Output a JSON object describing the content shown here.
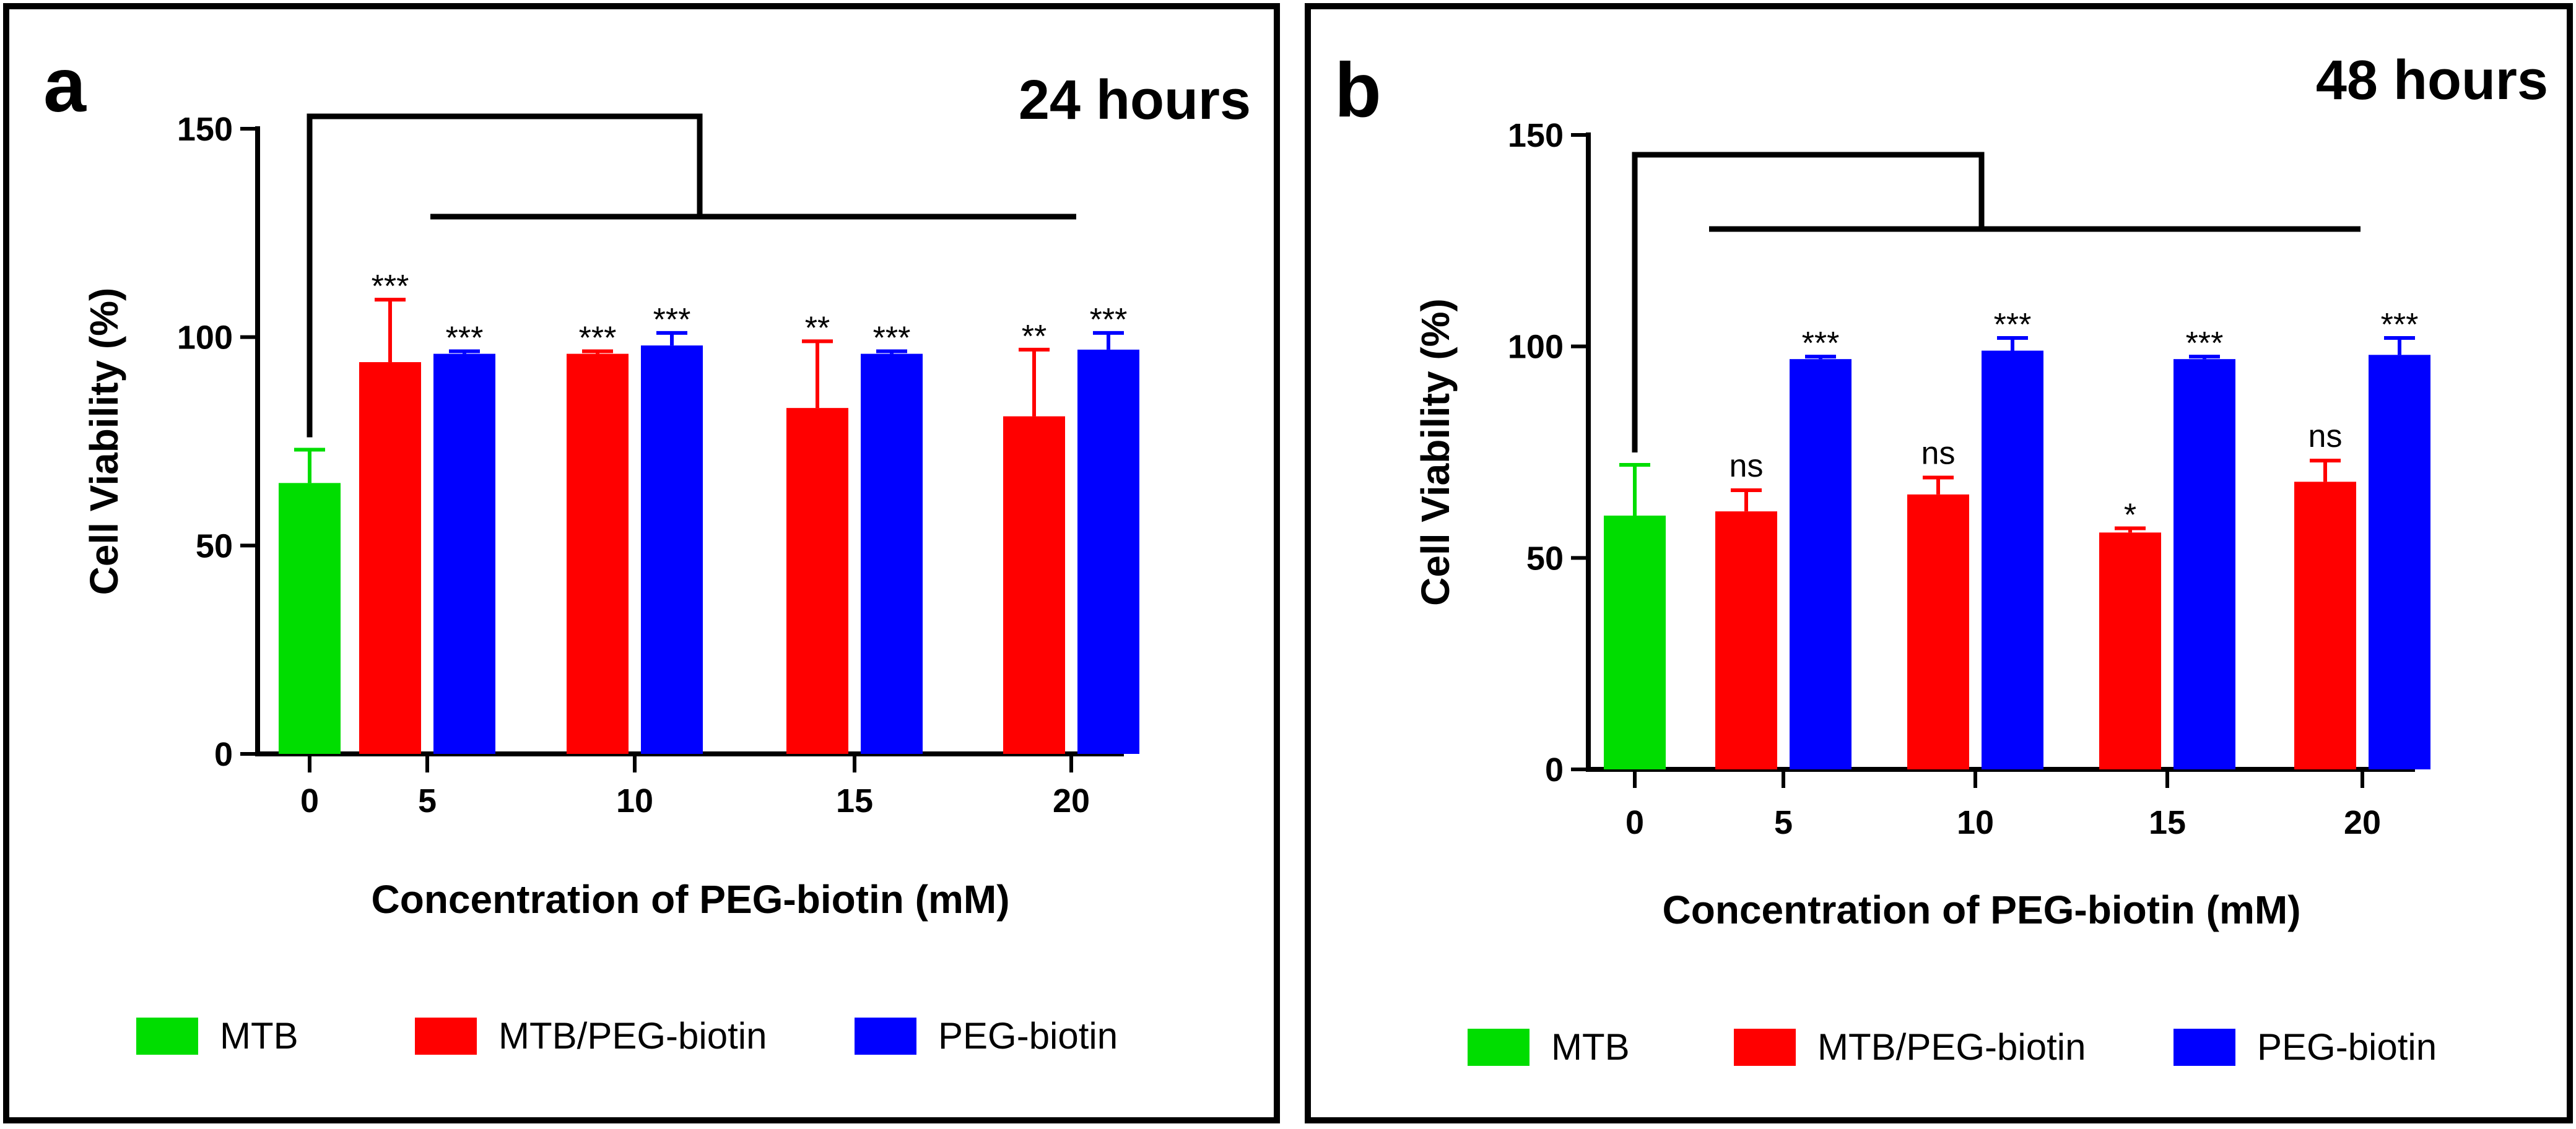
{
  "chart_data": [
    {
      "type": "bar",
      "panel_label": "a",
      "title": "24 hours",
      "xlabel": "Concentration of PEG-biotin (mM)",
      "ylabel": "Cell Viability (%)",
      "ylim": [
        0,
        150
      ],
      "yticks": [
        0,
        50,
        100,
        150
      ],
      "categories": [
        "0",
        "5",
        "10",
        "15",
        "20"
      ],
      "series": [
        {
          "name": "MTB",
          "color": "#00dd00",
          "values": [
            65,
            null,
            null,
            null,
            null
          ],
          "errors": [
            8,
            null,
            null,
            null,
            null
          ],
          "significance": [
            "",
            "",
            "",
            "",
            ""
          ]
        },
        {
          "name": "MTB/PEG-biotin",
          "color": "#ff0000",
          "values": [
            null,
            94,
            96,
            83,
            81
          ],
          "errors": [
            null,
            15,
            0.6,
            16,
            16
          ],
          "significance": [
            "",
            "***",
            "***",
            "**",
            "**"
          ]
        },
        {
          "name": "PEG-biotin",
          "color": "#0000ff",
          "values": [
            null,
            96,
            98,
            96,
            97
          ],
          "errors": [
            null,
            0.6,
            3,
            0.6,
            4
          ],
          "significance": [
            "",
            "***",
            "***",
            "***",
            "***"
          ]
        }
      ]
    },
    {
      "type": "bar",
      "panel_label": "b",
      "title": "48 hours",
      "xlabel": "Concentration of PEG-biotin (mM)",
      "ylabel": "Cell Viability (%)",
      "ylim": [
        0,
        150
      ],
      "yticks": [
        0,
        50,
        100,
        150
      ],
      "categories": [
        "0",
        "5",
        "10",
        "15",
        "20"
      ],
      "series": [
        {
          "name": "MTB",
          "color": "#00dd00",
          "values": [
            60,
            null,
            null,
            null,
            null
          ],
          "errors": [
            12,
            null,
            null,
            null,
            null
          ],
          "significance": [
            "",
            "",
            "",
            "",
            ""
          ]
        },
        {
          "name": "MTB/PEG-biotin",
          "color": "#ff0000",
          "values": [
            null,
            61,
            65,
            56,
            68
          ],
          "errors": [
            null,
            5,
            4,
            1,
            5
          ],
          "significance": [
            "",
            "ns",
            "ns",
            "*",
            "ns"
          ]
        },
        {
          "name": "PEG-biotin",
          "color": "#0000ff",
          "values": [
            null,
            97,
            99,
            97,
            98
          ],
          "errors": [
            null,
            0.6,
            3,
            0.6,
            4
          ],
          "significance": [
            "",
            "***",
            "***",
            "***",
            "***"
          ]
        }
      ]
    }
  ]
}
